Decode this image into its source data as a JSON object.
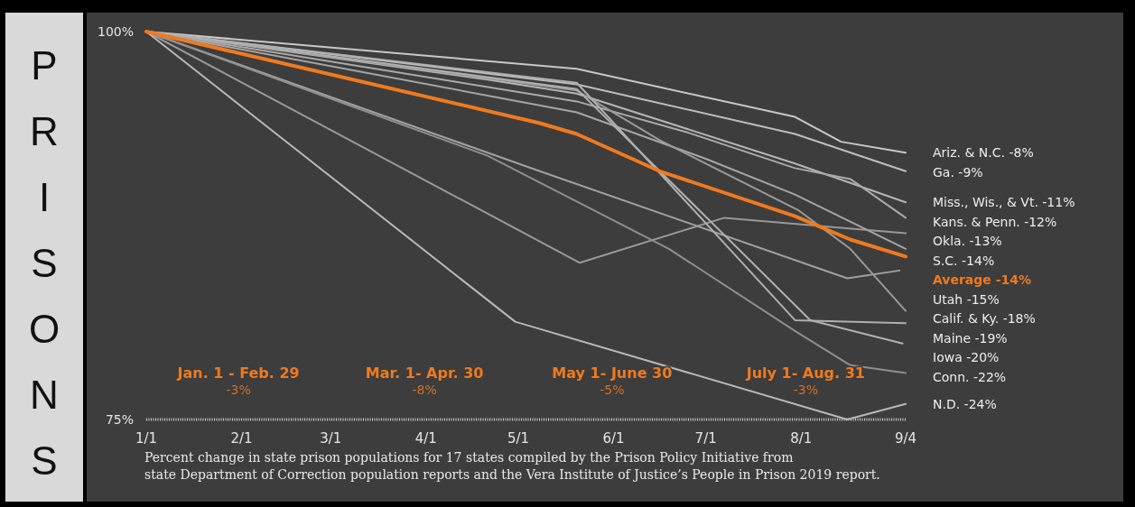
{
  "chart_data": {
    "type": "line",
    "title": "PRISONS",
    "xlim": [
      "--01-01",
      "--09-04"
    ],
    "xticks": [
      {
        "value": "--01-01",
        "label": "1/1"
      },
      {
        "value": "--02-01",
        "label": "2/1"
      },
      {
        "value": "--03-01",
        "label": "3/1"
      },
      {
        "value": "--04-01",
        "label": "4/1"
      },
      {
        "value": "--05-01",
        "label": "5/1"
      },
      {
        "value": "--06-01",
        "label": "6/1"
      },
      {
        "value": "--07-01",
        "label": "7/1"
      },
      {
        "value": "--08-01",
        "label": "8/1"
      },
      {
        "value": "--09-04",
        "label": "9/4"
      }
    ],
    "ylim": [
      75,
      100
    ],
    "yticks": [
      {
        "value": 100,
        "label": "100%"
      },
      {
        "value": 75,
        "label": "75%"
      }
    ],
    "grid": false,
    "line_style": "solid",
    "series": [
      {
        "name": "Ariz. & N.C. -8%",
        "color": "#c8c8c8",
        "x": [
          "--01-01",
          "--04-21",
          "--05-20",
          "--07-30",
          "--08-14",
          "--09-04"
        ],
        "values": [
          100,
          98.1,
          97.6,
          94.5,
          92.9,
          92.2
        ]
      },
      {
        "name": "Ga. -9%",
        "color": "#bdbdbd",
        "x": [
          "--01-01",
          "--04-21",
          "--05-20",
          "--07-30",
          "--09-04"
        ],
        "values": [
          100,
          97.3,
          96.6,
          93.4,
          91
        ]
      },
      {
        "name": "Miss., Wis., & Vt. -11%",
        "color": "#b5b5b5",
        "x": [
          "--01-01",
          "--04-21",
          "--05-20",
          "--07-30",
          "--09-04"
        ],
        "values": [
          100,
          96.9,
          96,
          91.5,
          89
        ]
      },
      {
        "name": "Kans. & Penn. -12%",
        "color": "#aaaaaa",
        "x": [
          "--01-01",
          "--05-20",
          "--06-25",
          "--07-30",
          "--08-17",
          "--09-04"
        ],
        "values": [
          100,
          95.5,
          93.5,
          91.2,
          90.5,
          88
        ]
      },
      {
        "name": "Okla. -13%",
        "color": "#999999",
        "x": [
          "--01-01",
          "--05-21",
          "--07-07",
          "--09-04"
        ],
        "values": [
          100,
          85.1,
          88,
          87
        ]
      },
      {
        "name": "S.C. -14%",
        "color": "#a5a5a5",
        "x": [
          "--01-01",
          "--05-20",
          "--07-01",
          "--07-30",
          "--09-04"
        ],
        "values": [
          100,
          94.8,
          91.8,
          89.5,
          86
        ]
      },
      {
        "name": "Average -14%",
        "color": "#f07a1e",
        "x": [
          "--01-01",
          "--05-08",
          "--05-20",
          "--06-16",
          "--07-30",
          "--08-17",
          "--09-04"
        ],
        "values": [
          100,
          94.1,
          93.4,
          91,
          88.1,
          86.6,
          85.5
        ]
      },
      {
        "name": "Utah -15%",
        "color": "#a0a0a0",
        "x": [
          "--01-01",
          "--05-08",
          "--08-16",
          "--09-02"
        ],
        "values": [
          100,
          91,
          84.1,
          84.6
        ]
      },
      {
        "name": "Calif. & Ky. -18%",
        "color": "#9a9a9a",
        "x": [
          "--01-01",
          "--05-20",
          "--06-16",
          "--07-31",
          "--08-17",
          "--09-04"
        ],
        "values": [
          100,
          96.2,
          93,
          88.5,
          86,
          82
        ]
      },
      {
        "name": "Maine -19%",
        "color": "#b0b0b0",
        "x": [
          "--01-01",
          "--05-20",
          "--07-30",
          "--09-04"
        ],
        "values": [
          100,
          96.7,
          81.4,
          81.2
        ]
      },
      {
        "name": "Iowa -20%",
        "color": "#b0b0b0",
        "x": [
          "--01-01",
          "--05-20",
          "--08-04",
          "--09-03"
        ],
        "values": [
          100,
          96.3,
          81.4,
          79.9
        ]
      },
      {
        "name": "Conn. -22%",
        "color": "#8f8f8f",
        "x": [
          "--01-01",
          "--04-21",
          "--06-19",
          "--07-30",
          "--08-17",
          "--09-04"
        ],
        "values": [
          100,
          92,
          86,
          80.7,
          78.5,
          78
        ]
      },
      {
        "name": "N.D. -24%",
        "color": "#b8b8b8",
        "x": [
          "--01-01",
          "--04-30",
          "--08-16",
          "--09-04"
        ],
        "values": [
          100,
          81.3,
          75,
          76
        ]
      }
    ],
    "annotations": [
      "Jan. 1 - Feb. 29",
      "-3%",
      "Mar. 1- Apr. 30",
      "-8%",
      "May 1- June 30",
      "-5%",
      "July 1- Aug. 31",
      "-3%",
      "Percent change in state prison populations for 17 states compiled by the Prison Policy Initiative from state Department of Correction population reports and the Vera Institute of Justice’s People in Prison 2019 report."
    ]
  }
}
